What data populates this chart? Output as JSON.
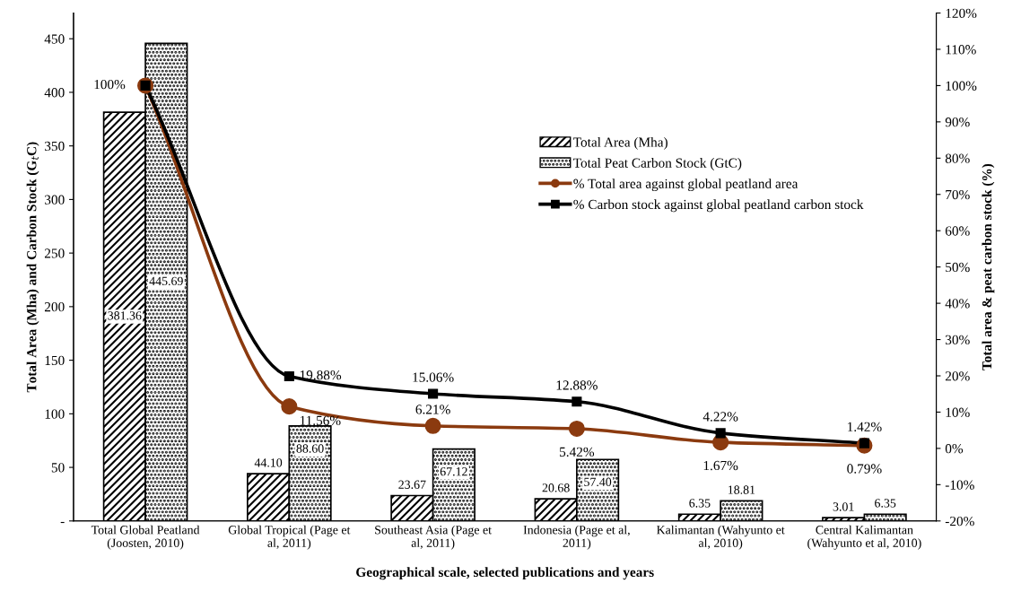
{
  "chart_data": {
    "type": "bar",
    "xlabel": "Geographical scale, selected publications and years",
    "ylabel": "Total Area (Mha) and Carbon Stock (G$_{t}$C)",
    "y2label": "Total area & peat carbon stock (%)",
    "categories": [
      "Total Global Peatland\n(Joosten, 2010)",
      "Global Tropical (Page et\nal, 2011)",
      "Southeast Asia (Page et\nal, 2011)",
      "Indonesia (Page et al,\n2011)",
      "Kalimantan (Wahyunto et\nal, 2010)",
      "Central Kalimantan\n(Wahyunto et al, 2010)"
    ],
    "series": [
      {
        "name": "Total Area (Mha)",
        "color": "#000000",
        "values": [
          381.36,
          44.1,
          23.67,
          20.68,
          6.35,
          3.01
        ],
        "value_labels": [
          "381.36",
          "44.10",
          "23.67",
          "20.68",
          "6.35",
          "3.01"
        ]
      },
      {
        "name": "Total Peat Carbon Stock (GtC)",
        "color": "#000000",
        "values": [
          445.69,
          88.6,
          67.12,
          57.4,
          18.81,
          6.35
        ],
        "value_labels": [
          "445.69",
          "88.60",
          "67.12",
          "57.40",
          "18.81",
          "6.35"
        ]
      },
      {
        "name": "% Total area against global peatland area",
        "type": "line",
        "axis": "y2",
        "color": "#8b3a0f",
        "marker": "circle",
        "values": [
          100,
          11.56,
          6.21,
          5.42,
          1.67,
          0.79
        ],
        "value_labels": [
          null,
          "11.56%",
          "6.21%",
          "5.42%",
          "1.67%",
          "0.79%"
        ]
      },
      {
        "name": "% Carbon stock against global peatland carbon stock",
        "type": "line",
        "axis": "y2",
        "color": "#000000",
        "marker": "square",
        "values": [
          100,
          19.88,
          15.06,
          12.88,
          4.22,
          1.42
        ],
        "value_labels": [
          "100%",
          "19.88%",
          "15.06%",
          "12.88%",
          "4.22%",
          "1.42%"
        ]
      }
    ],
    "ylim": [
      0,
      474
    ],
    "yticks": [
      {
        "value": 0,
        "label": "-"
      },
      50,
      100,
      150,
      200,
      250,
      300,
      350,
      400,
      450
    ],
    "y2lim": [
      -20,
      120
    ],
    "y2ticks": [
      {
        "value": -20,
        "label": "-20%"
      },
      {
        "value": -10,
        "label": "-10%"
      },
      {
        "value": 0,
        "label": "0%"
      },
      {
        "value": 10,
        "label": "10%"
      },
      {
        "value": 20,
        "label": "20%"
      },
      {
        "value": 30,
        "label": "30%"
      },
      {
        "value": 40,
        "label": "40%"
      },
      {
        "value": 50,
        "label": "50%"
      },
      {
        "value": 60,
        "label": "60%"
      },
      {
        "value": 70,
        "label": "70%"
      },
      {
        "value": 80,
        "label": "80%"
      },
      {
        "value": 90,
        "label": "90%"
      },
      {
        "value": 100,
        "label": "100%"
      },
      {
        "value": 110,
        "label": "110%"
      },
      {
        "value": 120,
        "label": "120%"
      }
    ],
    "legend": "top right",
    "grid": false
  }
}
